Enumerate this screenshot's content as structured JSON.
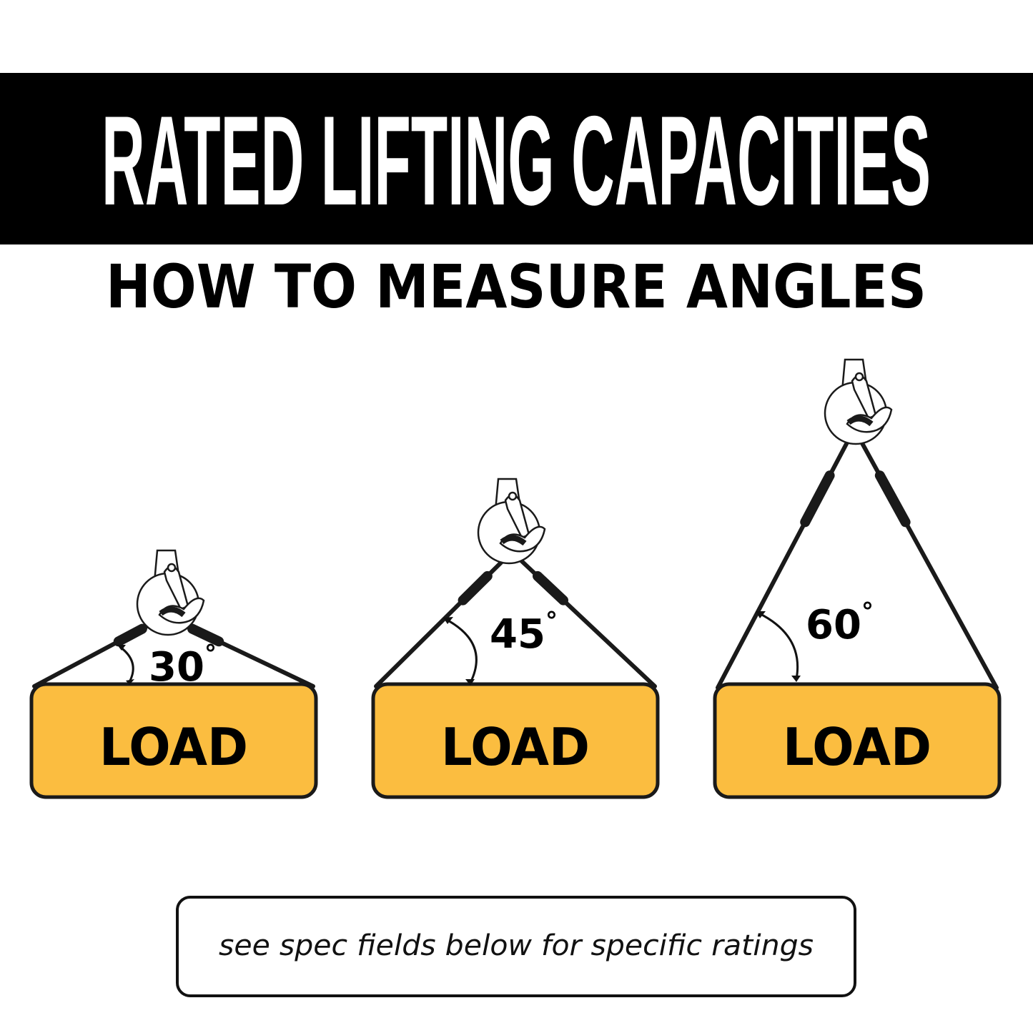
{
  "header": {
    "title": "RATED LIFTING CAPACITIES",
    "subtitle": "HOW TO MEASURE ANGLES"
  },
  "diagrams": [
    {
      "angle": "30",
      "degree_symbol": "°",
      "load_label": "LOAD"
    },
    {
      "angle": "45",
      "degree_symbol": "°",
      "load_label": "LOAD"
    },
    {
      "angle": "60",
      "degree_symbol": "°",
      "load_label": "LOAD"
    }
  ],
  "note": "see spec fields below for specific ratings",
  "colors": {
    "banner": "#000000",
    "load_fill": "#FBBD40",
    "outline": "#1a1a1a",
    "background": "#ffffff"
  }
}
